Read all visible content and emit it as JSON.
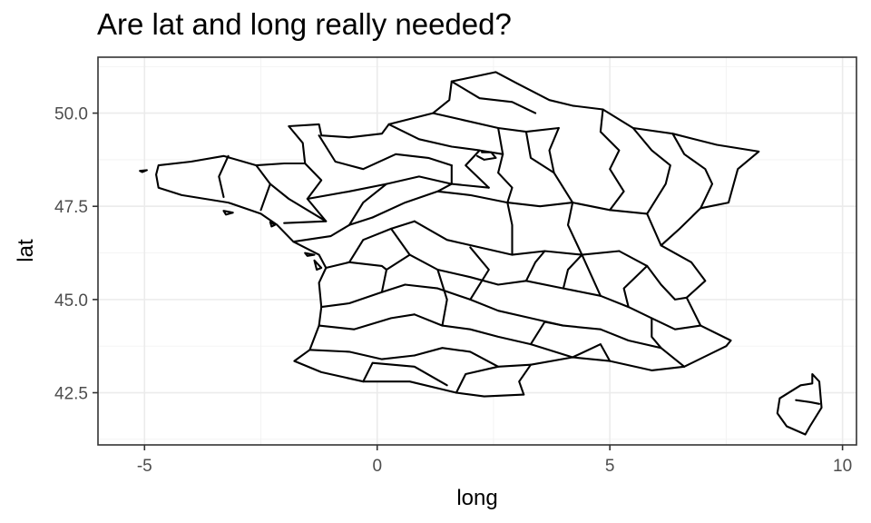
{
  "title": "Are lat and long really needed?",
  "chart_data": {
    "type": "map",
    "title": "Are lat and long really needed?",
    "xlabel": "long",
    "ylabel": "lat",
    "xlim": [
      -6,
      10.3
    ],
    "ylim": [
      41.1,
      51.5
    ],
    "x_ticks": [
      -5,
      0,
      5,
      10
    ],
    "x_tick_labels": [
      "-5",
      "0",
      "5",
      "10"
    ],
    "y_ticks": [
      42.5,
      45.0,
      47.5,
      50.0
    ],
    "y_tick_labels": [
      "42.5",
      "45.0",
      "47.5",
      "50.0"
    ],
    "grid": true,
    "theme": "bw",
    "fill_color": "#ffffff",
    "stroke_color": "#000000",
    "grid_color": "#ebebeb",
    "regions_description_note": "",
    "outline": [
      [
        -4.7,
        48.6
      ],
      [
        -4.0,
        48.7
      ],
      [
        -3.3,
        48.85
      ],
      [
        -2.6,
        48.6
      ],
      [
        -2.0,
        48.65
      ],
      [
        -1.55,
        48.65
      ],
      [
        -1.6,
        49.2
      ],
      [
        -1.9,
        49.65
      ],
      [
        -1.25,
        49.7
      ],
      [
        -1.2,
        49.4
      ],
      [
        -0.6,
        49.35
      ],
      [
        0.1,
        49.45
      ],
      [
        0.25,
        49.7
      ],
      [
        1.2,
        50.0
      ],
      [
        1.55,
        50.35
      ],
      [
        1.6,
        50.85
      ],
      [
        2.55,
        51.1
      ],
      [
        3.0,
        50.8
      ],
      [
        3.7,
        50.35
      ],
      [
        4.2,
        50.2
      ],
      [
        4.85,
        50.1
      ],
      [
        5.5,
        49.6
      ],
      [
        6.35,
        49.45
      ],
      [
        7.3,
        49.15
      ],
      [
        8.2,
        48.97
      ],
      [
        7.75,
        48.5
      ],
      [
        7.55,
        47.6
      ],
      [
        6.95,
        47.45
      ],
      [
        6.5,
        46.9
      ],
      [
        6.1,
        46.45
      ],
      [
        6.75,
        46.0
      ],
      [
        7.05,
        45.5
      ],
      [
        6.65,
        45.05
      ],
      [
        6.95,
        44.3
      ],
      [
        7.6,
        43.9
      ],
      [
        7.5,
        43.75
      ],
      [
        6.6,
        43.2
      ],
      [
        5.9,
        43.1
      ],
      [
        5.0,
        43.35
      ],
      [
        4.2,
        43.45
      ],
      [
        3.3,
        43.25
      ],
      [
        3.05,
        42.8
      ],
      [
        3.15,
        42.45
      ],
      [
        2.3,
        42.4
      ],
      [
        1.7,
        42.5
      ],
      [
        0.7,
        42.8
      ],
      [
        -0.3,
        42.8
      ],
      [
        -1.2,
        43.05
      ],
      [
        -1.78,
        43.35
      ],
      [
        -1.45,
        43.65
      ],
      [
        -1.25,
        44.3
      ],
      [
        -1.2,
        44.8
      ],
      [
        -1.25,
        45.45
      ],
      [
        -1.1,
        45.85
      ],
      [
        -1.25,
        46.2
      ],
      [
        -1.8,
        46.55
      ],
      [
        -2.15,
        47.0
      ],
      [
        -2.5,
        47.3
      ],
      [
        -3.2,
        47.6
      ],
      [
        -4.2,
        47.8
      ],
      [
        -4.7,
        48.0
      ],
      [
        -4.75,
        48.35
      ]
    ],
    "corsica": [
      [
        9.35,
        43.0
      ],
      [
        9.5,
        42.8
      ],
      [
        9.55,
        42.1
      ],
      [
        9.3,
        41.6
      ],
      [
        9.2,
        41.38
      ],
      [
        8.8,
        41.6
      ],
      [
        8.6,
        41.95
      ],
      [
        8.65,
        42.35
      ],
      [
        9.1,
        42.7
      ],
      [
        9.35,
        42.75
      ]
    ],
    "islands": [
      [
        [
          -5.1,
          48.45
        ],
        [
          -4.95,
          48.47
        ],
        [
          -5.05,
          48.42
        ]
      ],
      [
        [
          -3.3,
          47.38
        ],
        [
          -3.1,
          47.33
        ],
        [
          -3.25,
          47.28
        ]
      ],
      [
        [
          -2.3,
          47.08
        ],
        [
          -2.2,
          47.0
        ],
        [
          -2.27,
          46.96
        ]
      ],
      [
        [
          -1.55,
          46.25
        ],
        [
          -1.35,
          46.2
        ],
        [
          -1.5,
          46.17
        ]
      ],
      [
        [
          -1.35,
          46.05
        ],
        [
          -1.2,
          45.85
        ],
        [
          -1.3,
          45.8
        ]
      ]
    ],
    "borders": [
      [
        [
          -3.2,
          48.85
        ],
        [
          -3.4,
          48.3
        ],
        [
          -3.3,
          47.75
        ]
      ],
      [
        [
          -2.6,
          48.6
        ],
        [
          -2.3,
          48.1
        ],
        [
          -2.5,
          47.4
        ]
      ],
      [
        [
          -1.55,
          48.65
        ],
        [
          -1.2,
          48.2
        ],
        [
          -1.5,
          47.7
        ],
        [
          -1.1,
          47.1
        ],
        [
          -2.0,
          47.05
        ]
      ],
      [
        [
          -1.8,
          46.55
        ],
        [
          -1.0,
          46.7
        ],
        [
          -0.6,
          47.0
        ],
        [
          -0.1,
          47.2
        ]
      ],
      [
        [
          -1.1,
          45.85
        ],
        [
          -0.6,
          46.0
        ],
        [
          -0.3,
          46.6
        ],
        [
          0.3,
          46.9
        ],
        [
          0.8,
          47.1
        ]
      ],
      [
        [
          -1.2,
          44.8
        ],
        [
          -0.6,
          44.9
        ],
        [
          0.1,
          45.2
        ],
        [
          0.6,
          45.4
        ]
      ],
      [
        [
          -1.25,
          44.3
        ],
        [
          -0.5,
          44.2
        ],
        [
          0.3,
          44.5
        ],
        [
          0.8,
          44.6
        ]
      ],
      [
        [
          -1.45,
          43.65
        ],
        [
          -0.6,
          43.6
        ],
        [
          0.1,
          43.4
        ],
        [
          0.8,
          43.5
        ]
      ],
      [
        [
          -0.3,
          42.8
        ],
        [
          -0.1,
          43.3
        ],
        [
          0.8,
          43.2
        ],
        [
          1.5,
          42.7
        ]
      ],
      [
        [
          1.7,
          42.5
        ],
        [
          1.9,
          43.0
        ],
        [
          2.6,
          43.2
        ],
        [
          3.3,
          43.25
        ]
      ],
      [
        [
          0.8,
          43.5
        ],
        [
          1.4,
          43.7
        ],
        [
          2.0,
          43.6
        ],
        [
          2.6,
          43.2
        ]
      ],
      [
        [
          0.8,
          44.6
        ],
        [
          1.4,
          44.3
        ],
        [
          2.0,
          44.2
        ],
        [
          2.6,
          44.0
        ],
        [
          3.3,
          43.8
        ],
        [
          4.2,
          43.45
        ]
      ],
      [
        [
          0.6,
          45.4
        ],
        [
          1.3,
          45.3
        ],
        [
          2.0,
          45.0
        ],
        [
          2.6,
          44.7
        ],
        [
          3.3,
          44.5
        ],
        [
          4.0,
          44.3
        ],
        [
          4.8,
          44.2
        ]
      ],
      [
        [
          0.8,
          47.1
        ],
        [
          1.5,
          46.6
        ],
        [
          2.2,
          46.4
        ],
        [
          2.9,
          46.2
        ],
        [
          3.6,
          46.3
        ],
        [
          4.4,
          46.2
        ],
        [
          5.2,
          46.3
        ]
      ],
      [
        [
          0.3,
          46.9
        ],
        [
          0.7,
          46.2
        ],
        [
          1.3,
          45.8
        ],
        [
          2.0,
          45.6
        ],
        [
          2.6,
          45.4
        ],
        [
          3.2,
          45.5
        ],
        [
          4.0,
          45.3
        ],
        [
          4.8,
          45.1
        ]
      ],
      [
        [
          -0.1,
          47.2
        ],
        [
          0.6,
          47.6
        ],
        [
          1.3,
          47.9
        ],
        [
          2.0,
          47.8
        ],
        [
          2.8,
          47.6
        ],
        [
          3.5,
          47.5
        ],
        [
          4.2,
          47.6
        ],
        [
          5.0,
          47.4
        ],
        [
          5.8,
          47.3
        ]
      ],
      [
        [
          -1.5,
          47.7
        ],
        [
          -0.6,
          47.9
        ],
        [
          0.2,
          48.1
        ],
        [
          0.9,
          48.3
        ],
        [
          1.6,
          48.1
        ],
        [
          2.4,
          48.0
        ]
      ],
      [
        [
          -1.25,
          49.4
        ],
        [
          -0.9,
          48.7
        ],
        [
          -0.3,
          48.5
        ],
        [
          0.4,
          48.9
        ],
        [
          1.1,
          48.8
        ],
        [
          1.6,
          48.6
        ]
      ],
      [
        [
          0.25,
          49.7
        ],
        [
          0.9,
          49.3
        ],
        [
          1.6,
          49.1
        ],
        [
          2.2,
          49.0
        ],
        [
          2.7,
          48.9
        ]
      ],
      [
        [
          1.2,
          50.0
        ],
        [
          1.9,
          49.8
        ],
        [
          2.6,
          49.6
        ],
        [
          3.2,
          49.5
        ],
        [
          3.9,
          49.6
        ]
      ],
      [
        [
          1.6,
          50.85
        ],
        [
          2.2,
          50.4
        ],
        [
          2.9,
          50.3
        ],
        [
          3.4,
          50.0
        ]
      ],
      [
        [
          2.6,
          49.6
        ],
        [
          2.7,
          48.9
        ],
        [
          2.6,
          48.4
        ],
        [
          2.9,
          48.0
        ],
        [
          2.8,
          47.6
        ],
        [
          2.9,
          47.0
        ],
        [
          2.9,
          46.2
        ]
      ],
      [
        [
          2.25,
          48.95
        ],
        [
          2.45,
          48.95
        ],
        [
          2.55,
          48.8
        ],
        [
          2.3,
          48.75
        ],
        [
          2.15,
          48.85
        ]
      ],
      [
        [
          3.9,
          49.6
        ],
        [
          3.7,
          49.0
        ],
        [
          3.8,
          48.4
        ],
        [
          4.2,
          47.6
        ],
        [
          4.1,
          47.0
        ],
        [
          4.4,
          46.2
        ],
        [
          4.8,
          45.1
        ]
      ],
      [
        [
          4.85,
          50.1
        ],
        [
          4.8,
          49.5
        ],
        [
          5.2,
          49.0
        ],
        [
          5.0,
          48.5
        ],
        [
          5.3,
          47.9
        ],
        [
          5.0,
          47.4
        ]
      ],
      [
        [
          5.5,
          49.6
        ],
        [
          5.9,
          49.0
        ],
        [
          6.3,
          48.6
        ],
        [
          6.2,
          48.1
        ],
        [
          5.8,
          47.3
        ],
        [
          6.1,
          46.45
        ]
      ],
      [
        [
          6.35,
          49.45
        ],
        [
          6.6,
          48.9
        ],
        [
          7.05,
          48.5
        ],
        [
          7.2,
          48.1
        ],
        [
          6.95,
          47.45
        ]
      ],
      [
        [
          5.2,
          46.3
        ],
        [
          5.8,
          45.9
        ],
        [
          6.1,
          45.4
        ],
        [
          6.4,
          45.0
        ],
        [
          6.65,
          45.05
        ]
      ],
      [
        [
          4.8,
          45.1
        ],
        [
          5.4,
          44.8
        ],
        [
          5.9,
          44.5
        ],
        [
          6.4,
          44.2
        ],
        [
          6.95,
          44.3
        ]
      ],
      [
        [
          4.8,
          44.2
        ],
        [
          5.4,
          43.9
        ],
        [
          6.1,
          43.7
        ],
        [
          6.6,
          43.2
        ]
      ],
      [
        [
          4.2,
          43.45
        ],
        [
          4.8,
          43.8
        ],
        [
          5.0,
          43.35
        ]
      ],
      [
        [
          3.3,
          43.8
        ],
        [
          3.6,
          44.4
        ],
        [
          4.0,
          44.3
        ]
      ],
      [
        [
          2.0,
          45.0
        ],
        [
          2.4,
          45.8
        ],
        [
          2.0,
          46.4
        ]
      ],
      [
        [
          1.3,
          45.8
        ],
        [
          1.5,
          45.0
        ],
        [
          1.4,
          44.3
        ]
      ],
      [
        [
          0.1,
          45.2
        ],
        [
          0.2,
          45.8
        ],
        [
          0.7,
          46.2
        ]
      ],
      [
        [
          -0.6,
          46.0
        ],
        [
          0.1,
          45.9
        ],
        [
          0.2,
          45.8
        ]
      ],
      [
        [
          -0.6,
          47.0
        ],
        [
          -0.3,
          47.6
        ],
        [
          0.2,
          48.1
        ]
      ],
      [
        [
          -2.3,
          48.1
        ],
        [
          -1.9,
          47.7
        ],
        [
          -1.1,
          47.1
        ]
      ],
      [
        [
          3.2,
          45.5
        ],
        [
          3.4,
          46.0
        ],
        [
          3.6,
          46.3
        ]
      ],
      [
        [
          4.0,
          45.3
        ],
        [
          4.1,
          45.8
        ],
        [
          4.4,
          46.2
        ]
      ],
      [
        [
          5.4,
          44.8
        ],
        [
          5.3,
          45.3
        ],
        [
          5.8,
          45.9
        ]
      ],
      [
        [
          5.9,
          44.5
        ],
        [
          5.9,
          44.0
        ],
        [
          6.1,
          43.7
        ]
      ],
      [
        [
          1.6,
          48.6
        ],
        [
          1.6,
          48.1
        ],
        [
          1.3,
          47.9
        ]
      ],
      [
        [
          2.2,
          49.0
        ],
        [
          1.9,
          48.6
        ],
        [
          2.4,
          48.0
        ]
      ],
      [
        [
          3.2,
          49.5
        ],
        [
          3.3,
          48.8
        ],
        [
          3.8,
          48.4
        ]
      ],
      [
        [
          9.0,
          42.3
        ],
        [
          9.3,
          42.25
        ],
        [
          9.5,
          42.2
        ]
      ]
    ]
  }
}
